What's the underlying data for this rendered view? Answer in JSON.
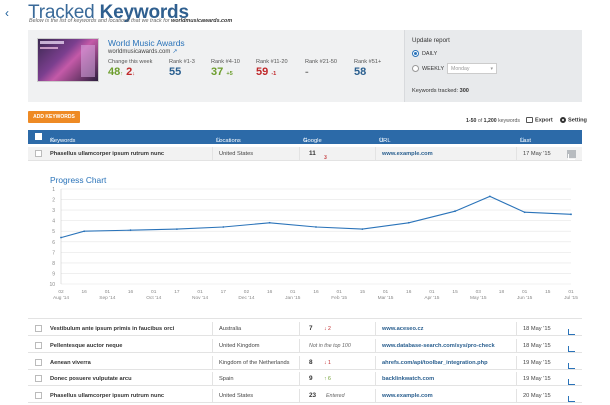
{
  "header": {
    "back_icon": "chevron-left-icon",
    "title_light": "Tracked",
    "title_bold": "Keywords",
    "subtitle_prefix": "Below is the list of keywords and locations that we track for",
    "subtitle_site": "worldmusicawards.com"
  },
  "site": {
    "name": "World Music Awards",
    "url": "worldmusicawards.com",
    "external_icon": "external-link-icon"
  },
  "stats": [
    {
      "label": "Change this week",
      "up": "48",
      "up_arrow": "↑",
      "down": "2",
      "down_arrow": "↓"
    },
    {
      "label": "Rank #1-3",
      "value": "55",
      "delta": ""
    },
    {
      "label": "Rank #4-10",
      "value": "37",
      "delta": "+5"
    },
    {
      "label": "Rank #11-20",
      "value": "59",
      "delta": "-1"
    },
    {
      "label": "Rank #21-50",
      "value": "-",
      "delta": ""
    },
    {
      "label": "Rank #51+",
      "value": "58",
      "delta": ""
    }
  ],
  "report": {
    "heading": "Update report",
    "daily": "DAILY",
    "weekly": "WEEKLY",
    "weekday": "Monday",
    "tracked_label": "Keywords tracked:",
    "tracked_value": "300"
  },
  "toolbar": {
    "add_label": "ADD KEYWORDS",
    "count_range": "1-50",
    "count_of": "of",
    "count_total": "1,200",
    "count_unit": "keywords",
    "export": "Export",
    "settings": "Setting"
  },
  "table": {
    "headers": [
      "Keywords",
      "Locations",
      "Google Rank (change)",
      "URL",
      "Last Check"
    ],
    "first_row": {
      "keyword": "Phasellus ullamcorper ipsum rutrum nunc",
      "location": "United States",
      "rank": "11",
      "dir": "↓",
      "change": "3",
      "url": "www.example.com",
      "date": "17 May '15"
    },
    "rows": [
      {
        "keyword": "Vestibulum ante ipsum primis in faucibus orci",
        "location": "Australia",
        "rank": "7",
        "dir": "↓",
        "change": "2",
        "url": "www.aceseo.cz",
        "date": "18 May '15"
      },
      {
        "keyword": "Pellentesque auctor neque",
        "location": "United Kingdom",
        "rank": "",
        "dir": "",
        "change": "",
        "note": "Not in the top 100",
        "url": "www.database-search.com/sys/pro-check",
        "date": "18 May '15"
      },
      {
        "keyword": "Aenean viverra",
        "location": "Kingdom of the Netherlands",
        "rank": "8",
        "dir": "↓",
        "change": "1",
        "url": "ahrefs.com/api/toolbar_integration.php",
        "date": "19 May '15"
      },
      {
        "keyword": "Donec posuere vulputate arcu",
        "location": "Spain",
        "rank": "9",
        "dir": "↑",
        "change": "6",
        "url": "backlinkwatch.com",
        "date": "19 May '15"
      },
      {
        "keyword": "Phasellus ullamcorper ipsum rutrum nunc",
        "location": "United States",
        "rank": "23",
        "dir": "",
        "change": "",
        "note": "Entered",
        "url": "www.example.com",
        "date": "20 May '15"
      }
    ]
  },
  "colors": {
    "accent": "#2c6aa8",
    "orange": "#ee8a24",
    "up": "#6c9d2d",
    "down": "#c0282a",
    "line": "#2a73b9"
  },
  "chart_data": {
    "type": "line",
    "title": "Progress Chart",
    "y_ticks": [
      "1",
      "2",
      "3",
      "4",
      "5",
      "6",
      "7",
      "8",
      "9",
      "10"
    ],
    "ylim": [
      1,
      10
    ],
    "y_inverted": true,
    "x_ticks": [
      {
        "top": "02",
        "bottom": "Aug '14"
      },
      {
        "top": "16",
        "bottom": ""
      },
      {
        "top": "01",
        "bottom": "Sep '14"
      },
      {
        "top": "16",
        "bottom": ""
      },
      {
        "top": "01",
        "bottom": "Oct '14"
      },
      {
        "top": "17",
        "bottom": ""
      },
      {
        "top": "01",
        "bottom": "Nov '14"
      },
      {
        "top": "17",
        "bottom": ""
      },
      {
        "top": "02",
        "bottom": "Dec '14"
      },
      {
        "top": "16",
        "bottom": ""
      },
      {
        "top": "01",
        "bottom": "Jan '15"
      },
      {
        "top": "16",
        "bottom": ""
      },
      {
        "top": "01",
        "bottom": "Feb '15"
      },
      {
        "top": "15",
        "bottom": ""
      },
      {
        "top": "01",
        "bottom": "Mar '15"
      },
      {
        "top": "16",
        "bottom": ""
      },
      {
        "top": "01",
        "bottom": "Apr '15"
      },
      {
        "top": "15",
        "bottom": ""
      },
      {
        "top": "03",
        "bottom": "May '15"
      },
      {
        "top": "18",
        "bottom": ""
      },
      {
        "top": "01",
        "bottom": "Jun '15"
      },
      {
        "top": "15",
        "bottom": ""
      },
      {
        "top": "01",
        "bottom": "Jul '15"
      }
    ],
    "x": [
      0,
      1,
      3,
      5,
      7,
      9,
      11,
      13,
      15,
      17,
      18.5,
      20,
      22
    ],
    "values": [
      5.6,
      5.0,
      4.9,
      4.8,
      4.6,
      4.2,
      4.6,
      4.8,
      4.2,
      3.1,
      1.7,
      3.2,
      3.4
    ]
  }
}
